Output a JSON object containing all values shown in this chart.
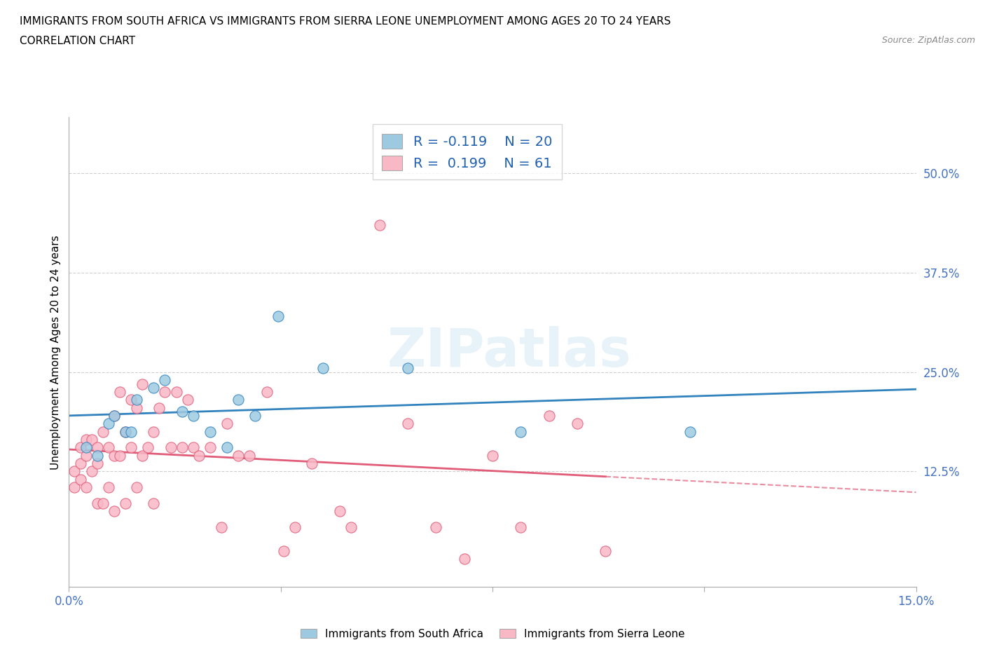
{
  "title_line1": "IMMIGRANTS FROM SOUTH AFRICA VS IMMIGRANTS FROM SIERRA LEONE UNEMPLOYMENT AMONG AGES 20 TO 24 YEARS",
  "title_line2": "CORRELATION CHART",
  "source_text": "Source: ZipAtlas.com",
  "ylabel": "Unemployment Among Ages 20 to 24 years",
  "xlim": [
    0.0,
    0.15
  ],
  "ylim": [
    -0.02,
    0.57
  ],
  "ytick_labels_right": [
    "12.5%",
    "25.0%",
    "37.5%",
    "50.0%"
  ],
  "ytick_values_right": [
    0.125,
    0.25,
    0.375,
    0.5
  ],
  "color_blue": "#9ecae1",
  "color_pink": "#f9b8c6",
  "color_blue_line": "#3182bd",
  "color_pink_line": "#e05c78",
  "R_blue": -0.119,
  "N_blue": 20,
  "R_pink": 0.199,
  "N_pink": 61,
  "watermark": "ZIPatlas",
  "legend1_label": "Immigrants from South Africa",
  "legend2_label": "Immigrants from Sierra Leone",
  "south_africa_x": [
    0.003,
    0.005,
    0.007,
    0.008,
    0.01,
    0.011,
    0.012,
    0.015,
    0.017,
    0.02,
    0.022,
    0.025,
    0.028,
    0.03,
    0.033,
    0.037,
    0.045,
    0.06,
    0.08,
    0.11
  ],
  "south_africa_y": [
    0.155,
    0.145,
    0.185,
    0.195,
    0.175,
    0.175,
    0.215,
    0.23,
    0.24,
    0.2,
    0.195,
    0.175,
    0.155,
    0.215,
    0.195,
    0.32,
    0.255,
    0.255,
    0.175,
    0.175
  ],
  "sierra_leone_x": [
    0.001,
    0.001,
    0.002,
    0.002,
    0.002,
    0.003,
    0.003,
    0.003,
    0.004,
    0.004,
    0.005,
    0.005,
    0.005,
    0.006,
    0.006,
    0.007,
    0.007,
    0.008,
    0.008,
    0.008,
    0.009,
    0.009,
    0.01,
    0.01,
    0.011,
    0.011,
    0.012,
    0.012,
    0.013,
    0.013,
    0.014,
    0.015,
    0.015,
    0.016,
    0.017,
    0.018,
    0.019,
    0.02,
    0.021,
    0.022,
    0.023,
    0.025,
    0.027,
    0.028,
    0.03,
    0.032,
    0.035,
    0.038,
    0.04,
    0.043,
    0.048,
    0.05,
    0.055,
    0.06,
    0.065,
    0.07,
    0.075,
    0.08,
    0.085,
    0.09,
    0.095
  ],
  "sierra_leone_y": [
    0.105,
    0.125,
    0.115,
    0.135,
    0.155,
    0.105,
    0.145,
    0.165,
    0.125,
    0.165,
    0.085,
    0.135,
    0.155,
    0.085,
    0.175,
    0.105,
    0.155,
    0.075,
    0.145,
    0.195,
    0.145,
    0.225,
    0.085,
    0.175,
    0.155,
    0.215,
    0.105,
    0.205,
    0.145,
    0.235,
    0.155,
    0.085,
    0.175,
    0.205,
    0.225,
    0.155,
    0.225,
    0.155,
    0.215,
    0.155,
    0.145,
    0.155,
    0.055,
    0.185,
    0.145,
    0.145,
    0.225,
    0.025,
    0.055,
    0.135,
    0.075,
    0.055,
    0.435,
    0.185,
    0.055,
    0.015,
    0.145,
    0.055,
    0.195,
    0.185,
    0.025
  ]
}
